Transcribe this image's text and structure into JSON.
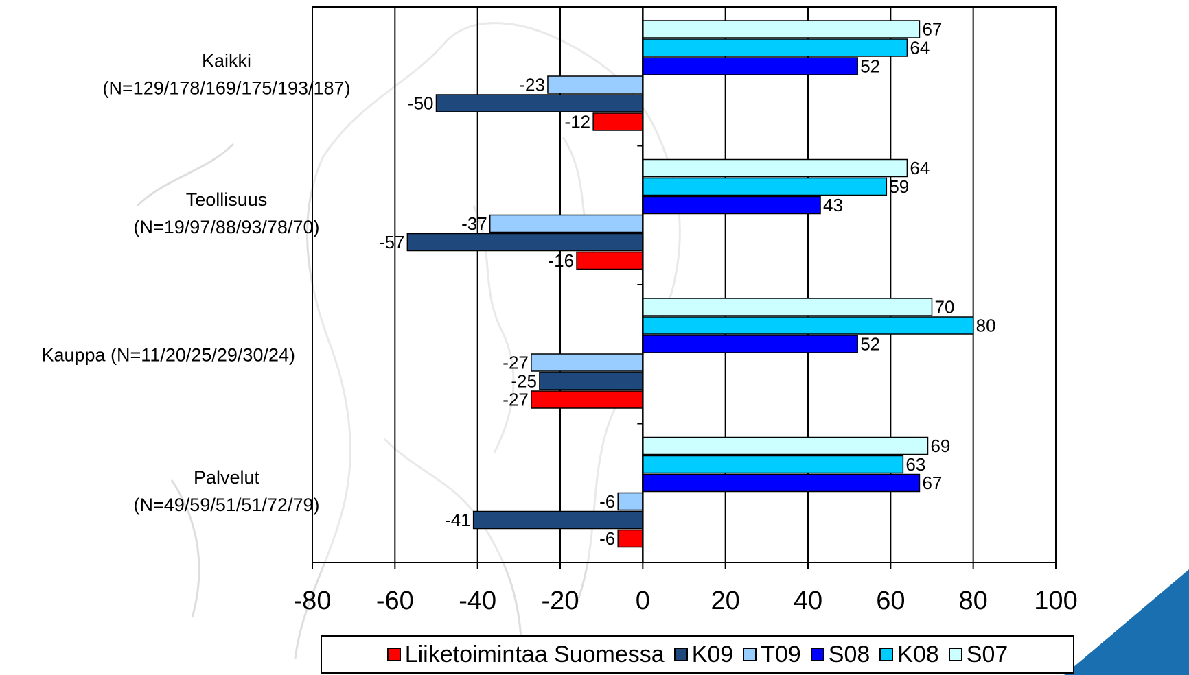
{
  "chart_data": {
    "type": "bar",
    "orientation": "horizontal",
    "title": "",
    "xlabel": "",
    "ylabel": "",
    "xlim": [
      -80,
      100
    ],
    "x_ticks": [
      -80,
      -60,
      -40,
      -20,
      0,
      20,
      40,
      60,
      80,
      100
    ],
    "grid": "vertical",
    "legend_position": "bottom",
    "categories": [
      {
        "line1": "Kaikki",
        "line2": "(N=129/178/169/175/193/187)"
      },
      {
        "line1": "Teollisuus",
        "line2": "(N=19/97/88/93/78/70)"
      },
      {
        "line1": "Kauppa (N=11/20/25/29/30/24)",
        "line2": ""
      },
      {
        "line1": "Palvelut",
        "line2": "(N=49/59/51/51/72/79)"
      }
    ],
    "series": [
      {
        "name": "Liiketoimintaa Suomessa",
        "color": "#ff0000",
        "values": [
          -12,
          -16,
          -27,
          -6
        ]
      },
      {
        "name": "K09",
        "color": "#1f497d",
        "values": [
          -50,
          -57,
          -25,
          -41
        ]
      },
      {
        "name": "T09",
        "color": "#99ccff",
        "values": [
          -23,
          -37,
          -27,
          -6
        ]
      },
      {
        "name": "S08",
        "color": "#0000ff",
        "values": [
          52,
          43,
          52,
          67
        ]
      },
      {
        "name": "K08",
        "color": "#00ccff",
        "values": [
          64,
          59,
          80,
          63
        ]
      },
      {
        "name": "S07",
        "color": "#ccffff",
        "values": [
          67,
          64,
          70,
          69
        ]
      }
    ]
  }
}
